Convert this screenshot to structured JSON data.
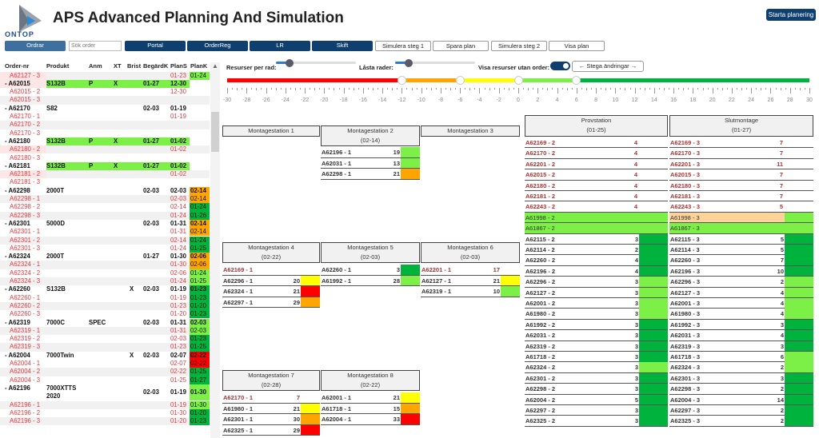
{
  "app": {
    "title": "APS Advanced Planning And Simulation",
    "logo_text": "ONTOP",
    "start_button": "Starta planering"
  },
  "colors": {
    "dark_green": "#00b33c",
    "light_green": "#7cf046",
    "orange": "#ffa500",
    "red": "#ff0000",
    "yellow": "#ffff00",
    "peach": "#fdd39a",
    "primary": "#0f3f6e"
  },
  "toolbar": {
    "ordrar": "Ordrar",
    "search_placeholder": "Sök order",
    "portal": "Portal",
    "orderreg": "OrderReg",
    "lr": "LR",
    "skift": "Skift",
    "sim1": "Simulera steg 1",
    "spara": "Spara plan",
    "sim2": "Simulera steg 2",
    "visa": "Visa plan"
  },
  "controls": {
    "resurser_label": "Resurser per rad:",
    "resurser_value": 2,
    "lasta_label": "Låsta rader:",
    "lasta_value": 2,
    "visa_label": "Visa resurser utan order:",
    "visa_on": true,
    "stega": "Stega ändringar",
    "scale_min": -30,
    "scale_max": 30,
    "thresholds": [
      -12,
      -6,
      0,
      6
    ],
    "ticks": [
      "-30",
      "-28",
      "-26",
      "-24",
      "-22",
      "-20",
      "-18",
      "-16",
      "-14",
      "-12",
      "-10",
      "-8",
      "-6",
      "-4",
      "-2",
      "0",
      "2",
      "4",
      "6",
      "8",
      "10",
      "12",
      "14",
      "16",
      "18",
      "20",
      "22",
      "24",
      "26",
      "28",
      "30"
    ]
  },
  "orders": {
    "headers": [
      "Order-nr",
      "Produkt",
      "Anm",
      "XT",
      "Brist",
      "BegärdK",
      "PlanS",
      "PlanK"
    ],
    "rows": [
      {
        "t": "c",
        "id": "A62127 - 3",
        "ps": "01-23",
        "pk": "01-24",
        "pkc": "lg",
        "pink": true
      },
      {
        "t": "p",
        "id": "- A62015",
        "prod": "S132B",
        "anm": "P",
        "xt": "X",
        "bk": "01-27",
        "ps": "12-30",
        "green": true,
        "pink": true
      },
      {
        "t": "c",
        "id": "A62015 - 2",
        "ps": "12-30"
      },
      {
        "t": "c",
        "id": "A62015 - 3"
      },
      {
        "t": "p",
        "id": "- A62170",
        "prod": "S82",
        "bk": "02-03",
        "ps": "01-19"
      },
      {
        "t": "c",
        "id": "A62170 - 1",
        "ps": "01-19"
      },
      {
        "t": "c",
        "id": "A62170 - 2"
      },
      {
        "t": "c",
        "id": "A62170 - 3"
      },
      {
        "t": "p",
        "id": "- A62180",
        "prod": "S132B",
        "anm": "P",
        "xt": "X",
        "bk": "01-27",
        "ps": "01-02",
        "green": true
      },
      {
        "t": "c",
        "id": "A62180 - 2",
        "ps": "01-02",
        "pink": true
      },
      {
        "t": "c",
        "id": "A62180 - 3"
      },
      {
        "t": "p",
        "id": "- A62181",
        "prod": "S132B",
        "anm": "P",
        "xt": "X",
        "bk": "01-27",
        "ps": "01-02",
        "green": true
      },
      {
        "t": "c",
        "id": "A62181 - 2",
        "ps": "01-02",
        "pink": true
      },
      {
        "t": "c",
        "id": "A62181 - 3"
      },
      {
        "t": "p",
        "id": "- A62298",
        "prod": "2000T",
        "bk": "02-03",
        "ps": "02-03",
        "pk": "02-14",
        "pkc": "or"
      },
      {
        "t": "c",
        "id": "A62298 - 1",
        "ps": "02-03",
        "pk": "02-14",
        "pkc": "or"
      },
      {
        "t": "c",
        "id": "A62298 - 2",
        "ps": "02-14",
        "pk": "01-24",
        "pkc": "dg"
      },
      {
        "t": "c",
        "id": "A62298 - 3",
        "ps": "01-24",
        "pk": "01-26",
        "pkc": "dg"
      },
      {
        "t": "p",
        "id": "- A62301",
        "prod": "5000D",
        "bk": "02-03",
        "ps": "01-31",
        "pk": "02-14",
        "pkc": "or"
      },
      {
        "t": "c",
        "id": "A62301 - 1",
        "ps": "01-31",
        "pk": "02-14",
        "pkc": "or"
      },
      {
        "t": "c",
        "id": "A62301 - 2",
        "ps": "02-14",
        "pk": "01-24",
        "pkc": "dg"
      },
      {
        "t": "c",
        "id": "A62301 - 3",
        "ps": "01-24",
        "pk": "01-25",
        "pkc": "dg"
      },
      {
        "t": "p",
        "id": "- A62324",
        "prod": "2000T",
        "bk": "01-27",
        "ps": "01-30",
        "pk": "02-06",
        "pkc": "or"
      },
      {
        "t": "c",
        "id": "A62324 - 1",
        "ps": "01-30",
        "pk": "02-06",
        "pkc": "or"
      },
      {
        "t": "c",
        "id": "A62324 - 2",
        "ps": "02-06",
        "pk": "01-24",
        "pkc": "lg"
      },
      {
        "t": "c",
        "id": "A62324 - 3",
        "ps": "01-24",
        "pk": "01-25",
        "pkc": "lg"
      },
      {
        "t": "p",
        "id": "- A62260",
        "prod": "S132B",
        "br": "X",
        "bk": "02-03",
        "ps": "01-19",
        "pk": "01-23",
        "pkc": "dg"
      },
      {
        "t": "c",
        "id": "A62260 - 1",
        "ps": "01-19",
        "pk": "01-23",
        "pkc": "dg"
      },
      {
        "t": "c",
        "id": "A62260 - 2",
        "ps": "01-23",
        "pk": "01-20",
        "pkc": "dg"
      },
      {
        "t": "c",
        "id": "A62260 - 3",
        "ps": "01-20",
        "pk": "01-23",
        "pkc": "dg"
      },
      {
        "t": "p",
        "id": "- A62319",
        "prod": "7000C",
        "anm": "SPEC",
        "bk": "02-03",
        "ps": "01-31",
        "pk": "02-03",
        "pkc": "lg"
      },
      {
        "t": "c",
        "id": "A62319 - 1",
        "ps": "01-31",
        "pk": "02-03",
        "pkc": "lg"
      },
      {
        "t": "c",
        "id": "A62319 - 2",
        "ps": "02-03",
        "pk": "01-23",
        "pkc": "dg"
      },
      {
        "t": "c",
        "id": "A62319 - 3",
        "ps": "01-23",
        "pk": "01-25",
        "pkc": "dg"
      },
      {
        "t": "p",
        "id": "- A62004",
        "prod": "7000Twin",
        "br": "X",
        "bk": "02-03",
        "ps": "02-07",
        "pk": "02-22",
        "pkc": "rd"
      },
      {
        "t": "c",
        "id": "A62004 - 1",
        "ps": "02-07",
        "pk": "02-22",
        "pkc": "rd"
      },
      {
        "t": "c",
        "id": "A62004 - 2",
        "ps": "02-22",
        "pk": "01-25",
        "pkc": "dg"
      },
      {
        "t": "c",
        "id": "A62004 - 3",
        "ps": "01-25",
        "pk": "01-27",
        "pkc": "dg"
      },
      {
        "t": "p",
        "id": "- A62196",
        "prod": "7000XTTS 2020",
        "bk": "02-03",
        "ps": "01-19",
        "pk": "01-30",
        "pkc": "lg",
        "tall": true
      },
      {
        "t": "c",
        "id": "A62196 - 1",
        "ps": "01-19",
        "pk": "01-30",
        "pkc": "lg"
      },
      {
        "t": "c",
        "id": "A62196 - 2",
        "ps": "01-30",
        "pk": "01-20",
        "pkc": "dg"
      },
      {
        "t": "c",
        "id": "A62196 - 3",
        "ps": "01-20",
        "pk": "01-23",
        "pkc": "dg"
      }
    ]
  },
  "stations": [
    {
      "name": "Montagestation 1",
      "rows": []
    },
    {
      "name": "Montagestation 2",
      "date": "(02-14)",
      "rows": [
        {
          "id": "A62196 - 1",
          "n": "19",
          "c": "lg"
        },
        {
          "id": "A62031 - 1",
          "n": "13",
          "c": "lg"
        },
        {
          "id": "A62298 - 1",
          "n": "21",
          "c": "or"
        }
      ]
    },
    {
      "name": "Montagestation 3",
      "rows": []
    },
    {
      "name": "Montagestation 4",
      "date": "(02-22)",
      "rows": [
        {
          "id": "A62169 - 1",
          "red": true
        },
        {
          "id": "A62296 - 1",
          "n": "20",
          "c": "ye"
        },
        {
          "id": "A62324 - 1",
          "n": "21",
          "c": "rd"
        },
        {
          "id": "A62297 - 1",
          "n": "29",
          "c": "or"
        }
      ]
    },
    {
      "name": "Montagestation 5",
      "date": "(02-03)",
      "rows": [
        {
          "id": "A62260 - 1",
          "n": "3",
          "c": "dg"
        },
        {
          "id": "A61992 - 1",
          "n": "28",
          "c": "lg"
        }
      ]
    },
    {
      "name": "Montagestation 6",
      "date": "(02-03)",
      "rows": [
        {
          "id": "A62201 - 1",
          "n": "17",
          "red": true
        },
        {
          "id": "A62127 - 1",
          "n": "21",
          "c": "ye"
        },
        {
          "id": "A62319 - 1",
          "n": "10",
          "c": "lg"
        }
      ]
    },
    {
      "name": "Montagestation 7",
      "date": "(02-28)",
      "rows": [
        {
          "id": "A62170 - 1",
          "n": "7",
          "red": true
        },
        {
          "id": "A61980 - 1",
          "n": "21",
          "c": "ye"
        },
        {
          "id": "A62301 - 1",
          "n": "30",
          "c": "or"
        },
        {
          "id": "A62325 - 1",
          "n": "29",
          "c": "rd"
        }
      ]
    },
    {
      "name": "Montagestation 8",
      "date": "(02-22)",
      "rows": [
        {
          "id": "A62001 - 1",
          "n": "21",
          "c": "ye"
        },
        {
          "id": "A61718 - 1",
          "n": "15",
          "c": "or"
        },
        {
          "id": "A62004 - 1",
          "n": "33",
          "c": "rd"
        }
      ]
    },
    {
      "name": "Provstation",
      "date": "(01-25)",
      "rows": [
        {
          "id": "A62169 - 2",
          "n": "4",
          "red": true
        },
        {
          "id": "A62170 - 2",
          "n": "4",
          "red": true
        },
        {
          "id": "A62201 - 2",
          "n": "4",
          "red": true
        },
        {
          "id": "A62015 - 2",
          "n": "4",
          "red": true
        },
        {
          "id": "A62180 - 2",
          "n": "4",
          "red": true
        },
        {
          "id": "A62181 - 2",
          "n": "4",
          "red": true
        },
        {
          "id": "A62243 - 2",
          "n": "4",
          "red": true
        },
        {
          "id": "A61998 - 2",
          "bg": "lg"
        },
        {
          "id": "A61867 - 2",
          "bg": "lg"
        },
        {
          "id": "A62115 - 2",
          "n": "3",
          "c": "dg"
        },
        {
          "id": "A62114 - 2",
          "n": "2",
          "c": "dg"
        },
        {
          "id": "A62260 - 2",
          "n": "4",
          "c": "dg"
        },
        {
          "id": "A62196 - 2",
          "n": "4",
          "c": "dg"
        },
        {
          "id": "A62296 - 2",
          "n": "3",
          "c": "lg"
        },
        {
          "id": "A62127 - 2",
          "n": "3",
          "c": "lg"
        },
        {
          "id": "A62001 - 2",
          "n": "3",
          "c": "lg"
        },
        {
          "id": "A61980 - 2",
          "n": "3",
          "c": "lg"
        },
        {
          "id": "A61992 - 2",
          "n": "3",
          "c": "dg"
        },
        {
          "id": "A62031 - 2",
          "n": "3",
          "c": "dg"
        },
        {
          "id": "A62319 - 2",
          "n": "3",
          "c": "dg"
        },
        {
          "id": "A61718 - 2",
          "n": "3",
          "c": "dg"
        },
        {
          "id": "A62324 - 2",
          "n": "3",
          "c": "lg"
        },
        {
          "id": "A62301 - 2",
          "n": "3",
          "c": "dg"
        },
        {
          "id": "A62298 - 2",
          "n": "3",
          "c": "dg"
        },
        {
          "id": "A62004 - 2",
          "n": "5",
          "c": "dg"
        },
        {
          "id": "A62297 - 2",
          "n": "3",
          "c": "dg"
        },
        {
          "id": "A62325 - 2",
          "n": "3",
          "c": "dg"
        }
      ]
    },
    {
      "name": "Slutmontage",
      "date": "(01-27)",
      "rows": [
        {
          "id": "A62169 - 3",
          "n": "7",
          "red": true
        },
        {
          "id": "A62170 - 3",
          "n": "7",
          "red": true
        },
        {
          "id": "A62201 - 3",
          "n": "11",
          "red": true
        },
        {
          "id": "A62015 - 3",
          "n": "7",
          "red": true
        },
        {
          "id": "A62180 - 3",
          "n": "7",
          "red": true
        },
        {
          "id": "A62181 - 3",
          "n": "7",
          "red": true
        },
        {
          "id": "A62243 - 3",
          "n": "5",
          "red": true
        },
        {
          "id": "A61998 - 3",
          "bg": "pe",
          "c": "lg"
        },
        {
          "id": "A61867 - 3",
          "bg": "lg"
        },
        {
          "id": "A62115 - 3",
          "n": "5",
          "c": "dg"
        },
        {
          "id": "A62114 - 3",
          "n": "5",
          "c": "dg"
        },
        {
          "id": "A62260 - 3",
          "n": "7",
          "c": "dg"
        },
        {
          "id": "A62196 - 3",
          "n": "10",
          "c": "dg"
        },
        {
          "id": "A62296 - 3",
          "n": "2",
          "c": "lg"
        },
        {
          "id": "A62127 - 3",
          "n": "4",
          "c": "lg"
        },
        {
          "id": "A62001 - 3",
          "n": "4",
          "c": "lg"
        },
        {
          "id": "A61980 - 3",
          "n": "4",
          "c": "lg"
        },
        {
          "id": "A61992 - 3",
          "n": "3",
          "c": "dg"
        },
        {
          "id": "A62031 - 3",
          "n": "4",
          "c": "dg"
        },
        {
          "id": "A62319 - 3",
          "n": "3",
          "c": "dg"
        },
        {
          "id": "A61718 - 3",
          "n": "6",
          "c": "lg"
        },
        {
          "id": "A62324 - 3",
          "n": "2",
          "c": "lg"
        },
        {
          "id": "A62301 - 3",
          "n": "3",
          "c": "dg"
        },
        {
          "id": "A62298 - 3",
          "n": "2",
          "c": "dg"
        },
        {
          "id": "A62004 - 3",
          "n": "14",
          "c": "dg"
        },
        {
          "id": "A62297 - 3",
          "n": "2",
          "c": "dg"
        },
        {
          "id": "A62325 - 3",
          "n": "2",
          "c": "dg"
        }
      ]
    }
  ]
}
